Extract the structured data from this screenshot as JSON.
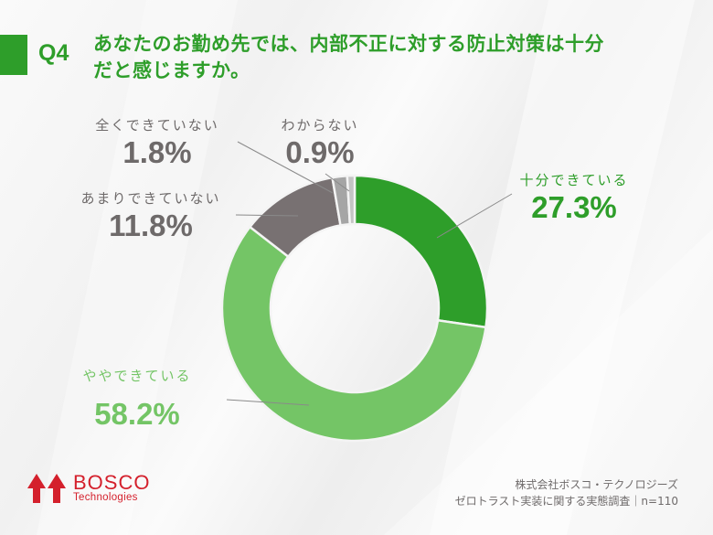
{
  "header": {
    "question_number": "Q4",
    "title_line1": "あなたのお勤め先では、内部不正に対する防止対策は十分",
    "title_line2": "だと感じますか。"
  },
  "labels": {
    "fully": {
      "category": "十分できている",
      "percent": "27.3%"
    },
    "somewhat": {
      "category": "ややできている",
      "percent": "58.2%"
    },
    "not_much": {
      "category": "あまりできていない",
      "percent": "11.8%"
    },
    "not_at_all": {
      "category": "全くできていない",
      "percent": "1.8%"
    },
    "unknown": {
      "category": "わからない",
      "percent": "0.9%"
    }
  },
  "logo": {
    "name": "BOSCO",
    "sub": "Technologies",
    "color": "#d4202c"
  },
  "source": {
    "company": "株式会社ボスコ・テクノロジーズ",
    "survey": "ゼロトラスト実装に関する実態調査｜n=110"
  },
  "colors": {
    "accent": "#2e9e2a",
    "fully": "#2e9e2a",
    "somewhat": "#74c566",
    "not_much": "#787172",
    "not_at_all": "#a5a5a5",
    "unknown": "#c4c4c4"
  },
  "chart_data": {
    "type": "pie",
    "subtype": "donut",
    "title": "Q4 あなたのお勤め先では、内部不正に対する防止対策は十分だと感じますか。",
    "categories": [
      "十分できている",
      "ややできている",
      "あまりできていない",
      "全くできていない",
      "わからない"
    ],
    "values": [
      27.3,
      58.2,
      11.8,
      1.8,
      0.9
    ],
    "unit": "%",
    "colors": [
      "#2e9e2a",
      "#74c566",
      "#787172",
      "#a5a5a5",
      "#c4c4c4"
    ],
    "start_angle": "12 o'clock, clockwise",
    "n": 110,
    "source": "株式会社ボスコ・テクノロジーズ ゼロトラスト実装に関する実態調査"
  }
}
